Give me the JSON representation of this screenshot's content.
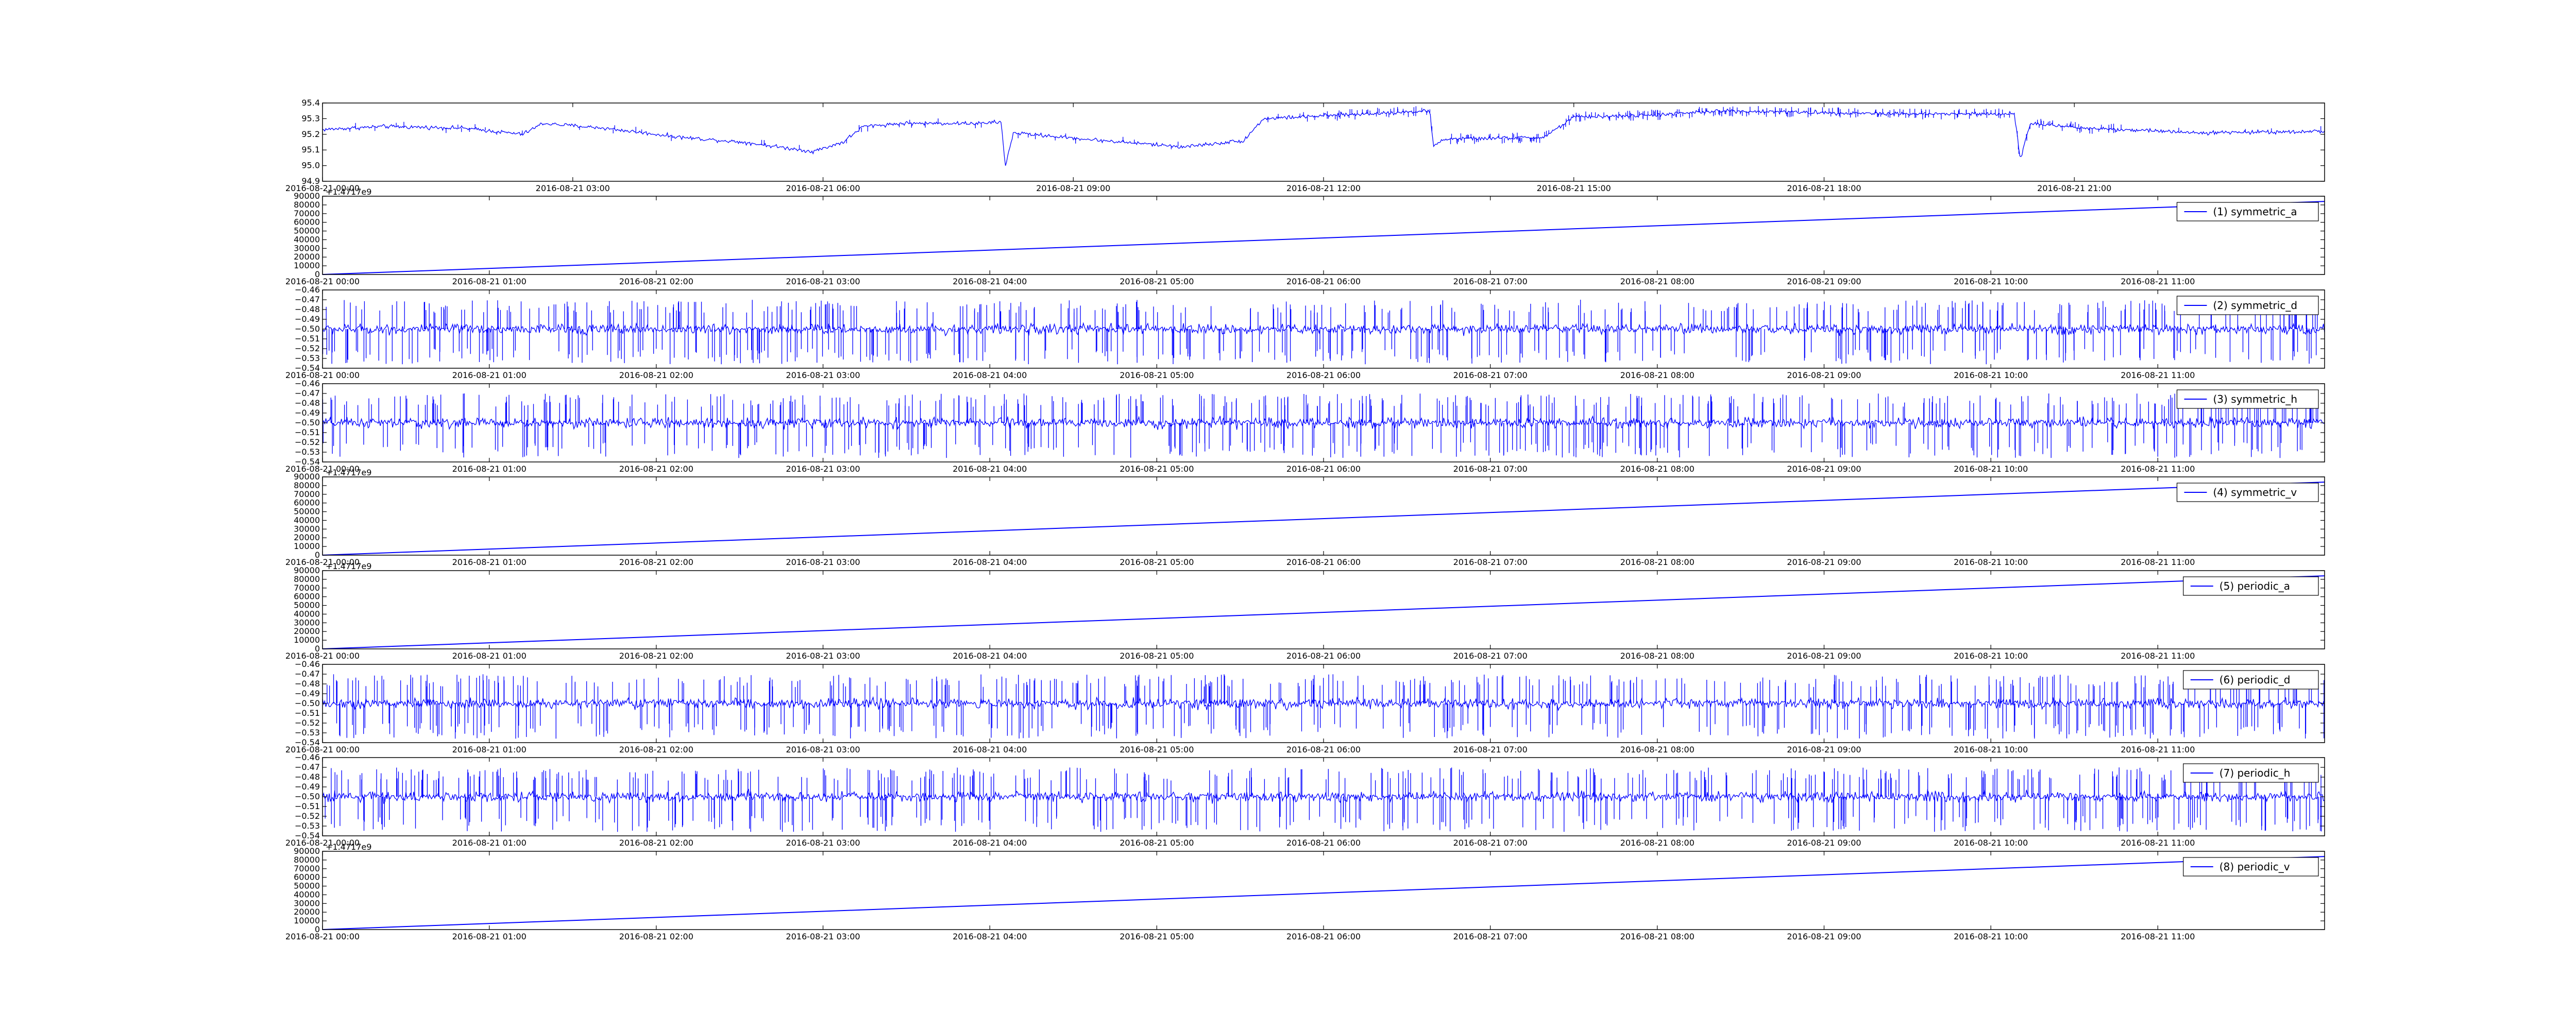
{
  "colors": {
    "line": "#0000ff",
    "axis": "#000000",
    "background": "#ffffff"
  },
  "chart_data": [
    {
      "id": "p0",
      "type": "line",
      "legend": null,
      "offset_label": "",
      "ylim": [
        94.9,
        95.4
      ],
      "ytick_labels": [
        "94.9",
        "95.0",
        "95.1",
        "95.2",
        "95.3",
        "95.4"
      ],
      "xtick_labels": [
        "2016-08-21 00:00",
        "2016-08-21 03:00",
        "2016-08-21 06:00",
        "2016-08-21 09:00",
        "2016-08-21 12:00",
        "2016-08-21 15:00",
        "2016-08-21 18:00",
        "2016-08-21 21:00"
      ],
      "xtick_positions": [
        0,
        0.125,
        0.25,
        0.375,
        0.5,
        0.625,
        0.75,
        0.875
      ],
      "noise": 0.006,
      "spikes": {
        "count": 340,
        "up": 0.035,
        "down": 0.035,
        "region": [
          0.5,
          0.9
        ]
      },
      "profile": [
        [
          0.0,
          95.23
        ],
        [
          0.03,
          95.25
        ],
        [
          0.07,
          95.24
        ],
        [
          0.1,
          95.2
        ],
        [
          0.11,
          95.27
        ],
        [
          0.14,
          95.24
        ],
        [
          0.18,
          95.18
        ],
        [
          0.21,
          95.15
        ],
        [
          0.245,
          95.09
        ],
        [
          0.26,
          95.15
        ],
        [
          0.27,
          95.25
        ],
        [
          0.29,
          95.27
        ],
        [
          0.33,
          95.27
        ],
        [
          0.339,
          95.28
        ],
        [
          0.341,
          94.99
        ],
        [
          0.345,
          95.21
        ],
        [
          0.38,
          95.17
        ],
        [
          0.43,
          95.12
        ],
        [
          0.46,
          95.16
        ],
        [
          0.47,
          95.3
        ],
        [
          0.52,
          95.33
        ],
        [
          0.553,
          95.35
        ],
        [
          0.555,
          95.12
        ],
        [
          0.56,
          95.17
        ],
        [
          0.61,
          95.18
        ],
        [
          0.625,
          95.31
        ],
        [
          0.66,
          95.32
        ],
        [
          0.7,
          95.35
        ],
        [
          0.74,
          95.34
        ],
        [
          0.8,
          95.33
        ],
        [
          0.845,
          95.33
        ],
        [
          0.848,
          95.04
        ],
        [
          0.853,
          95.27
        ],
        [
          0.88,
          95.24
        ],
        [
          0.94,
          95.21
        ],
        [
          1.0,
          95.22
        ]
      ]
    },
    {
      "id": "p1",
      "type": "line",
      "legend": "(1) symmetric_a",
      "offset_label": "+1.4717e9",
      "ylim": [
        0,
        90000
      ],
      "ytick_labels": [
        "0",
        "10000",
        "20000",
        "30000",
        "40000",
        "50000",
        "60000",
        "70000",
        "80000",
        "90000"
      ],
      "xtick_labels": [
        "2016-08-21 00:00",
        "2016-08-21 01:00",
        "2016-08-21 02:00",
        "2016-08-21 03:00",
        "2016-08-21 04:00",
        "2016-08-21 05:00",
        "2016-08-21 06:00",
        "2016-08-21 07:00",
        "2016-08-21 08:00",
        "2016-08-21 09:00",
        "2016-08-21 10:00",
        "2016-08-21 11:00"
      ],
      "xtick_positions": [
        0,
        0.0833,
        0.1667,
        0.25,
        0.3333,
        0.4167,
        0.5,
        0.5833,
        0.6667,
        0.75,
        0.8333,
        0.9167
      ],
      "profile": [
        [
          0,
          0
        ],
        [
          1,
          84000
        ]
      ]
    },
    {
      "id": "p2",
      "type": "line",
      "legend": "(2) symmetric_d",
      "offset_label": "",
      "ylim": [
        -0.54,
        -0.46
      ],
      "ytick_labels": [
        "-0.54",
        "-0.53",
        "-0.52",
        "-0.51",
        "-0.50",
        "-0.49",
        "-0.48",
        "-0.47",
        "-0.46"
      ],
      "xtick_labels": [
        "2016-08-21 00:00",
        "2016-08-21 01:00",
        "2016-08-21 02:00",
        "2016-08-21 03:00",
        "2016-08-21 04:00",
        "2016-08-21 05:00",
        "2016-08-21 06:00",
        "2016-08-21 07:00",
        "2016-08-21 08:00",
        "2016-08-21 09:00",
        "2016-08-21 10:00",
        "2016-08-21 11:00"
      ],
      "xtick_positions": [
        0,
        0.0833,
        0.1667,
        0.25,
        0.3333,
        0.4167,
        0.5,
        0.5833,
        0.6667,
        0.75,
        0.8333,
        0.9167
      ],
      "noise": 0.0025,
      "spikes": {
        "count": 700,
        "up": 0.03,
        "down": 0.036,
        "region": [
          0,
          1
        ]
      },
      "profile": [
        [
          0,
          -0.5
        ],
        [
          1,
          -0.5
        ]
      ]
    },
    {
      "id": "p3",
      "type": "line",
      "legend": "(3) symmetric_h",
      "offset_label": "",
      "ylim": [
        -0.54,
        -0.46
      ],
      "ytick_labels": [
        "-0.54",
        "-0.53",
        "-0.52",
        "-0.51",
        "-0.50",
        "-0.49",
        "-0.48",
        "-0.47",
        "-0.46"
      ],
      "xtick_labels": [
        "2016-08-21 00:00",
        "2016-08-21 01:00",
        "2016-08-21 02:00",
        "2016-08-21 03:00",
        "2016-08-21 04:00",
        "2016-08-21 05:00",
        "2016-08-21 06:00",
        "2016-08-21 07:00",
        "2016-08-21 08:00",
        "2016-08-21 09:00",
        "2016-08-21 10:00",
        "2016-08-21 11:00"
      ],
      "xtick_positions": [
        0,
        0.0833,
        0.1667,
        0.25,
        0.3333,
        0.4167,
        0.5,
        0.5833,
        0.6667,
        0.75,
        0.8333,
        0.9167
      ],
      "noise": 0.0025,
      "spikes": {
        "count": 700,
        "up": 0.03,
        "down": 0.036,
        "region": [
          0,
          1
        ]
      },
      "profile": [
        [
          0,
          -0.5
        ],
        [
          1,
          -0.5
        ]
      ]
    },
    {
      "id": "p4",
      "type": "line",
      "legend": "(4) symmetric_v",
      "offset_label": "+1.4717e9",
      "ylim": [
        0,
        90000
      ],
      "ytick_labels": [
        "0",
        "10000",
        "20000",
        "30000",
        "40000",
        "50000",
        "60000",
        "70000",
        "80000",
        "90000"
      ],
      "xtick_labels": [
        "2016-08-21 00:00",
        "2016-08-21 01:00",
        "2016-08-21 02:00",
        "2016-08-21 03:00",
        "2016-08-21 04:00",
        "2016-08-21 05:00",
        "2016-08-21 06:00",
        "2016-08-21 07:00",
        "2016-08-21 08:00",
        "2016-08-21 09:00",
        "2016-08-21 10:00",
        "2016-08-21 11:00"
      ],
      "xtick_positions": [
        0,
        0.0833,
        0.1667,
        0.25,
        0.3333,
        0.4167,
        0.5,
        0.5833,
        0.6667,
        0.75,
        0.8333,
        0.9167
      ],
      "profile": [
        [
          0,
          0
        ],
        [
          1,
          84000
        ]
      ]
    },
    {
      "id": "p5",
      "type": "line",
      "legend": "(5) periodic_a",
      "offset_label": "+1.4717e9",
      "ylim": [
        0,
        90000
      ],
      "ytick_labels": [
        "0",
        "10000",
        "20000",
        "30000",
        "40000",
        "50000",
        "60000",
        "70000",
        "80000",
        "90000"
      ],
      "xtick_labels": [
        "2016-08-21 00:00",
        "2016-08-21 01:00",
        "2016-08-21 02:00",
        "2016-08-21 03:00",
        "2016-08-21 04:00",
        "2016-08-21 05:00",
        "2016-08-21 06:00",
        "2016-08-21 07:00",
        "2016-08-21 08:00",
        "2016-08-21 09:00",
        "2016-08-21 10:00",
        "2016-08-21 11:00"
      ],
      "xtick_positions": [
        0,
        0.0833,
        0.1667,
        0.25,
        0.3333,
        0.4167,
        0.5,
        0.5833,
        0.6667,
        0.75,
        0.8333,
        0.9167
      ],
      "profile": [
        [
          0,
          0
        ],
        [
          1,
          84000
        ]
      ]
    },
    {
      "id": "p6",
      "type": "line",
      "legend": "(6) periodic_d",
      "offset_label": "",
      "ylim": [
        -0.54,
        -0.46
      ],
      "ytick_labels": [
        "-0.54",
        "-0.53",
        "-0.52",
        "-0.51",
        "-0.50",
        "-0.49",
        "-0.48",
        "-0.47",
        "-0.46"
      ],
      "xtick_labels": [
        "2016-08-21 00:00",
        "2016-08-21 01:00",
        "2016-08-21 02:00",
        "2016-08-21 03:00",
        "2016-08-21 04:00",
        "2016-08-21 05:00",
        "2016-08-21 06:00",
        "2016-08-21 07:00",
        "2016-08-21 08:00",
        "2016-08-21 09:00",
        "2016-08-21 10:00",
        "2016-08-21 11:00"
      ],
      "xtick_positions": [
        0,
        0.0833,
        0.1667,
        0.25,
        0.3333,
        0.4167,
        0.5,
        0.5833,
        0.6667,
        0.75,
        0.8333,
        0.9167
      ],
      "noise": 0.0025,
      "spikes": {
        "count": 700,
        "up": 0.03,
        "down": 0.036,
        "region": [
          0,
          1
        ]
      },
      "profile": [
        [
          0,
          -0.5
        ],
        [
          1,
          -0.5
        ]
      ]
    },
    {
      "id": "p7",
      "type": "line",
      "legend": "(7) periodic_h",
      "offset_label": "",
      "ylim": [
        -0.54,
        -0.46
      ],
      "ytick_labels": [
        "-0.54",
        "-0.53",
        "-0.52",
        "-0.51",
        "-0.50",
        "-0.49",
        "-0.48",
        "-0.47",
        "-0.46"
      ],
      "xtick_labels": [
        "2016-08-21 00:00",
        "2016-08-21 01:00",
        "2016-08-21 02:00",
        "2016-08-21 03:00",
        "2016-08-21 04:00",
        "2016-08-21 05:00",
        "2016-08-21 06:00",
        "2016-08-21 07:00",
        "2016-08-21 08:00",
        "2016-08-21 09:00",
        "2016-08-21 10:00",
        "2016-08-21 11:00"
      ],
      "xtick_positions": [
        0,
        0.0833,
        0.1667,
        0.25,
        0.3333,
        0.4167,
        0.5,
        0.5833,
        0.6667,
        0.75,
        0.8333,
        0.9167
      ],
      "noise": 0.0025,
      "spikes": {
        "count": 700,
        "up": 0.03,
        "down": 0.036,
        "region": [
          0,
          1
        ]
      },
      "profile": [
        [
          0,
          -0.5
        ],
        [
          1,
          -0.5
        ]
      ]
    },
    {
      "id": "p8",
      "type": "line",
      "legend": "(8) periodic_v",
      "offset_label": "+1.4717e9",
      "ylim": [
        0,
        90000
      ],
      "ytick_labels": [
        "0",
        "10000",
        "20000",
        "30000",
        "40000",
        "50000",
        "60000",
        "70000",
        "80000",
        "90000"
      ],
      "xtick_labels": [
        "2016-08-21 00:00",
        "2016-08-21 01:00",
        "2016-08-21 02:00",
        "2016-08-21 03:00",
        "2016-08-21 04:00",
        "2016-08-21 05:00",
        "2016-08-21 06:00",
        "2016-08-21 07:00",
        "2016-08-21 08:00",
        "2016-08-21 09:00",
        "2016-08-21 10:00",
        "2016-08-21 11:00"
      ],
      "xtick_positions": [
        0,
        0.0833,
        0.1667,
        0.25,
        0.3333,
        0.4167,
        0.5,
        0.5833,
        0.6667,
        0.75,
        0.8333,
        0.9167
      ],
      "profile": [
        [
          0,
          0
        ],
        [
          1,
          84000
        ]
      ]
    }
  ]
}
